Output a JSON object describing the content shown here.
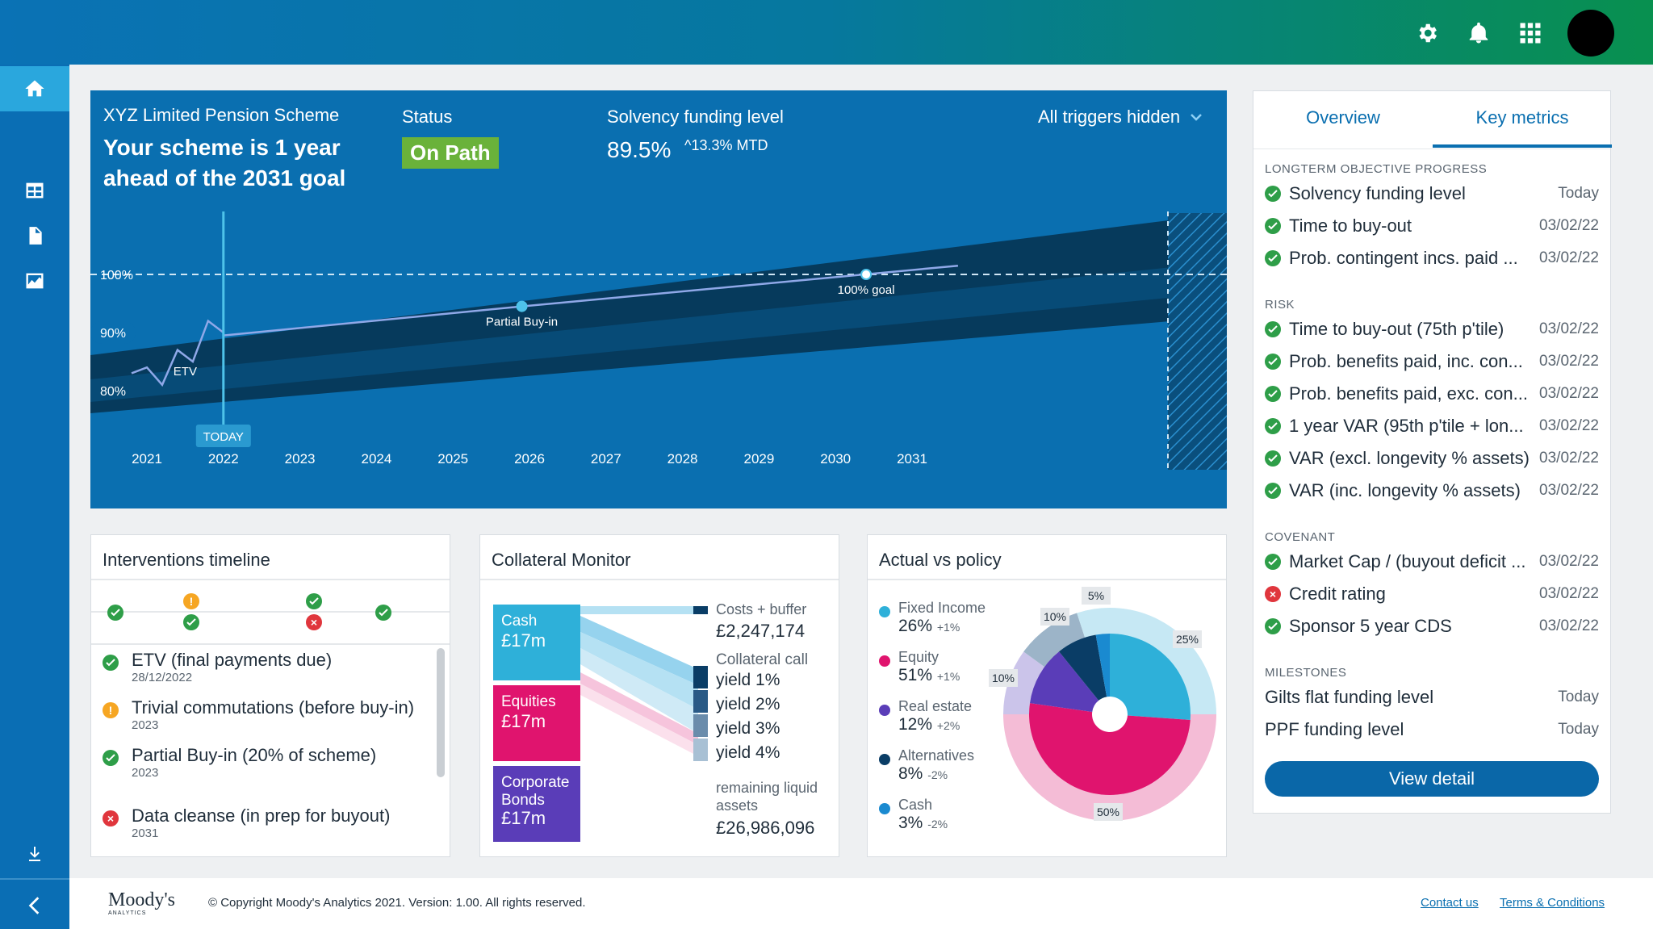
{
  "header": {
    "icons": [
      "gear-icon",
      "bell-icon",
      "apps-grid-icon",
      "avatar"
    ]
  },
  "sidenav": {
    "items": [
      "home-icon",
      "table-icon",
      "document-icon",
      "chart-icon",
      "download-icon",
      "collapse-arrow-icon"
    ]
  },
  "hero": {
    "scheme_name": "XYZ Limited Pension Scheme",
    "headline": "Your scheme is 1 year ahead of the 2031 goal",
    "status_label": "Status",
    "status_value": "On Path",
    "funding_label": "Solvency funding level",
    "funding_value": "89.5%",
    "funding_change": "^13.3% MTD",
    "triggers": "All triggers hidden",
    "colors": {
      "status_bg": "#6ab23a",
      "band_dark": "#063a5c",
      "band_mid": "#0a5a8e"
    }
  },
  "chart_data": {
    "type": "line",
    "xlabel": "",
    "ylabel": "",
    "x_ticks": [
      "2021",
      "2022",
      "2023",
      "2024",
      "2025",
      "2026",
      "2027",
      "2028",
      "2029",
      "2030",
      "2031"
    ],
    "y_ticks": [
      "80%",
      "90%",
      "100%"
    ],
    "ylim": [
      75,
      110
    ],
    "annotations": [
      {
        "label": "ETV",
        "x": 2021.5,
        "y": 84
      },
      {
        "label": "TODAY",
        "x": 2022.0
      },
      {
        "label": "Partial Buy-in",
        "x": 2025.9,
        "y": 94.5
      },
      {
        "label": "100% goal",
        "x": 2030.4,
        "y": 100
      }
    ],
    "series": [
      {
        "values_x": [
          2020.8,
          2021.0,
          2021.2,
          2021.4,
          2021.6,
          2021.8,
          2022.0
        ],
        "values_y": [
          83,
          84,
          81,
          87,
          85,
          92,
          90
        ]
      },
      {
        "values_x": [
          2022.0,
          2025.9,
          2031.6
        ],
        "values_y": [
          89.5,
          94.5,
          101.5
        ]
      }
    ]
  },
  "interventions": {
    "title": "Interventions timeline",
    "items": [
      {
        "title": "ETV (final payments due)",
        "date": "28/12/2022",
        "status": "ok"
      },
      {
        "title": "Trivial commutations (before buy-in)",
        "date": "2023",
        "status": "warn"
      },
      {
        "title": "Partial Buy-in (20% of scheme)",
        "date": "2023",
        "status": "ok"
      },
      {
        "title": "Data cleanse (in prep for buyout)",
        "date": "2031",
        "status": "bad"
      }
    ]
  },
  "collateral": {
    "title": "Collateral Monitor",
    "blocks": [
      {
        "name": "Cash",
        "value": "£17m"
      },
      {
        "name": "Equities",
        "value": "£17m"
      },
      {
        "name": "Corporate Bonds",
        "value": "£17m"
      }
    ],
    "costs_label": "Costs + buffer",
    "costs_value": "£2,247,174",
    "call_label": "Collateral call",
    "yields": [
      "yield 1%",
      "yield 2%",
      "yield 3%",
      "yield 4%"
    ],
    "remaining_label": "remaining liquid assets",
    "remaining_value": "£26,986,096"
  },
  "actual_policy": {
    "title": "Actual vs policy",
    "legend": [
      {
        "name": "Fixed Income",
        "value": "26%",
        "delta": "+1%",
        "color": "#2eb0d9"
      },
      {
        "name": "Equity",
        "value": "51%",
        "delta": "+1%",
        "color": "#e0146e"
      },
      {
        "name": "Real estate",
        "value": "12%",
        "delta": "+2%",
        "color": "#5a3db8"
      },
      {
        "name": "Alternatives",
        "value": "8%",
        "delta": "-2%",
        "color": "#0a3d66"
      },
      {
        "name": "Cash",
        "value": "3%",
        "delta": "-2%",
        "color": "#1a8ad0"
      }
    ],
    "donut_labels": [
      "5%",
      "25%",
      "10%",
      "10%",
      "50%"
    ]
  },
  "metrics": {
    "tab_overview": "Overview",
    "tab_key": "Key metrics",
    "sections": [
      {
        "heading": "LONGTERM OBJECTIVE PROGRESS",
        "rows": [
          {
            "label": "Solvency funding level",
            "date": "Today",
            "status": "ok"
          },
          {
            "label": "Time to buy-out",
            "date": "03/02/22",
            "status": "ok"
          },
          {
            "label": "Prob. contingent incs. paid ...",
            "date": "03/02/22",
            "status": "ok"
          }
        ]
      },
      {
        "heading": "RISK",
        "rows": [
          {
            "label": "Time to buy-out (75th p'tile)",
            "date": "03/02/22",
            "status": "ok"
          },
          {
            "label": "Prob. benefits paid, inc. con...",
            "date": "03/02/22",
            "status": "ok"
          },
          {
            "label": "Prob. benefits paid, exc. con...",
            "date": "03/02/22",
            "status": "ok"
          },
          {
            "label": "1 year VAR (95th p'tile + lon...",
            "date": "03/02/22",
            "status": "ok"
          },
          {
            "label": "VAR (excl. longevity % assets)",
            "date": "03/02/22",
            "status": "ok"
          },
          {
            "label": "VAR (inc. longevity % assets)",
            "date": "03/02/22",
            "status": "ok"
          }
        ]
      },
      {
        "heading": "COVENANT",
        "rows": [
          {
            "label": "Market Cap / (buyout deficit ...",
            "date": "03/02/22",
            "status": "ok"
          },
          {
            "label": "Credit rating",
            "date": "03/02/22",
            "status": "bad"
          },
          {
            "label": "Sponsor 5 year CDS",
            "date": "03/02/22",
            "status": "ok"
          }
        ]
      },
      {
        "heading": "MILESTONES",
        "rows": [
          {
            "label": "Gilts flat funding level",
            "date": "Today",
            "status": "none"
          },
          {
            "label": "PPF funding level",
            "date": "Today",
            "status": "none"
          }
        ]
      }
    ],
    "view_button": "View detail"
  },
  "footer": {
    "logo": "Moody's",
    "logo_sub": "ANALYTICS",
    "copyright": "© Copyright Moody's Analytics 2021. Version: 1.00.  All rights reserved.",
    "link_contact": "Contact us",
    "link_terms": "Terms & Conditions"
  }
}
